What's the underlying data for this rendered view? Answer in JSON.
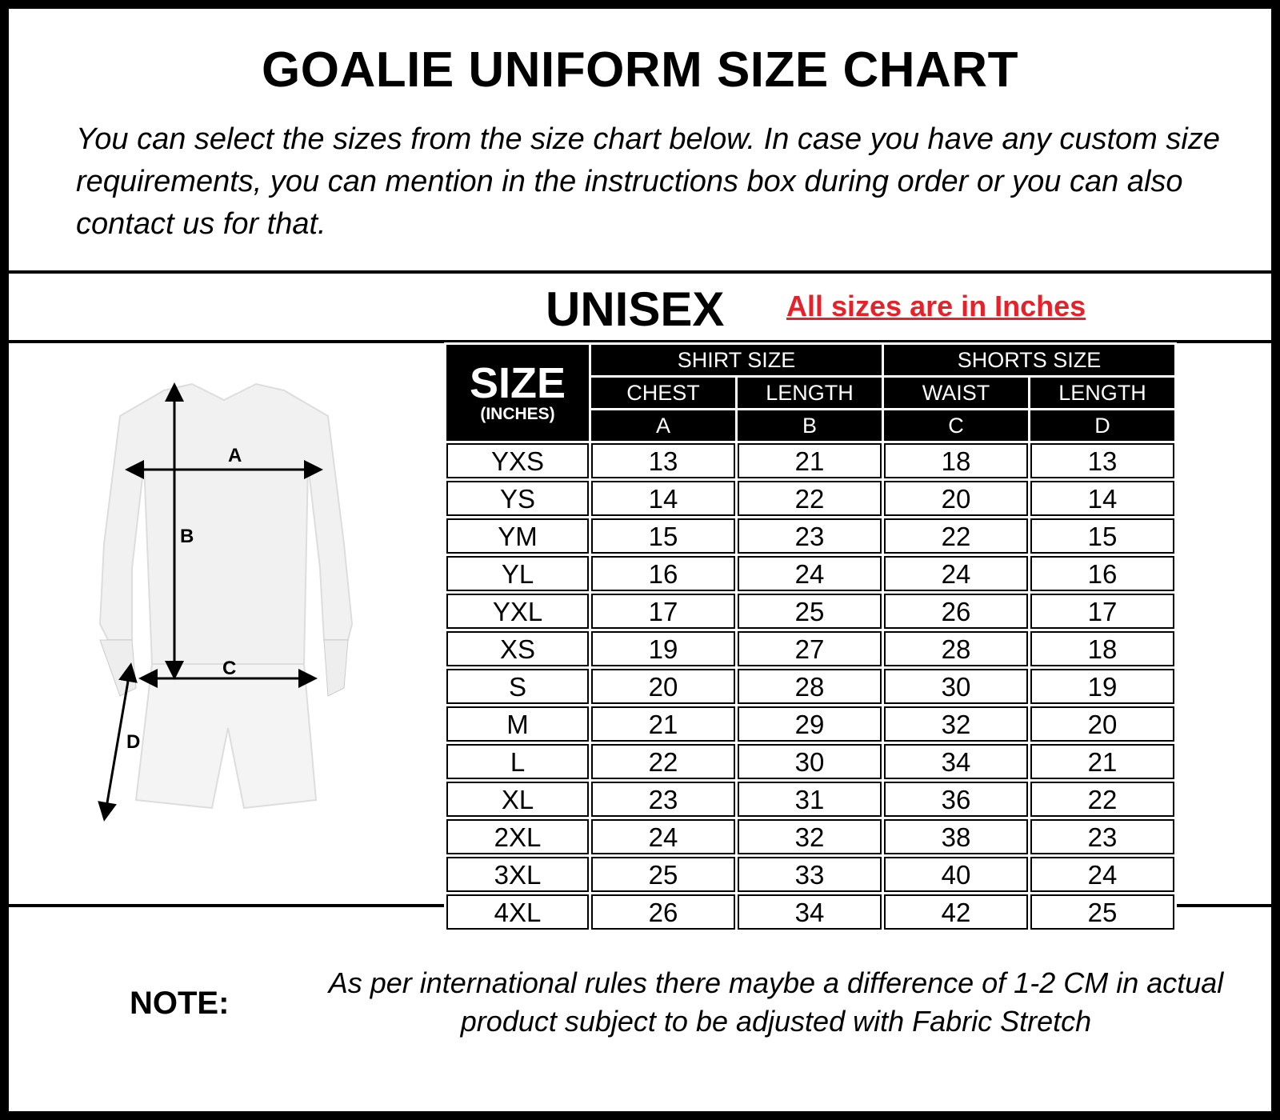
{
  "title": "GOALIE UNIFORM SIZE CHART",
  "intro": "You can select the sizes from the size chart below. In case you have any custom size requirements, you can mention in the instructions box during order or you can also contact us for that.",
  "unisex": "UNISEX",
  "units_note": "All sizes are in Inches",
  "accent_color": "#e5212a",
  "figure": {
    "labels": [
      "A",
      "B",
      "C",
      "D"
    ]
  },
  "table": {
    "size_header": "SIZE",
    "size_sub": "(INCHES)",
    "groups": [
      "SHIRT SIZE",
      "SHORTS SIZE"
    ],
    "columns": [
      "CHEST",
      "LENGTH",
      "WAIST",
      "LENGTH"
    ],
    "letters": [
      "A",
      "B",
      "C",
      "D"
    ],
    "rows": [
      [
        "YXS",
        "13",
        "21",
        "18",
        "13"
      ],
      [
        "YS",
        "14",
        "22",
        "20",
        "14"
      ],
      [
        "YM",
        "15",
        "23",
        "22",
        "15"
      ],
      [
        "YL",
        "16",
        "24",
        "24",
        "16"
      ],
      [
        "YXL",
        "17",
        "25",
        "26",
        "17"
      ],
      [
        "XS",
        "19",
        "27",
        "28",
        "18"
      ],
      [
        "S",
        "20",
        "28",
        "30",
        "19"
      ],
      [
        "M",
        "21",
        "29",
        "32",
        "20"
      ],
      [
        "L",
        "22",
        "30",
        "34",
        "21"
      ],
      [
        "XL",
        "23",
        "31",
        "36",
        "22"
      ],
      [
        "2XL",
        "24",
        "32",
        "38",
        "23"
      ],
      [
        "3XL",
        "25",
        "33",
        "40",
        "24"
      ],
      [
        "4XL",
        "26",
        "34",
        "42",
        "25"
      ]
    ]
  },
  "note": {
    "label": "NOTE:",
    "text": "As per international rules there maybe a difference of 1-2 CM in actual product subject to be adjusted with Fabric Stretch"
  }
}
